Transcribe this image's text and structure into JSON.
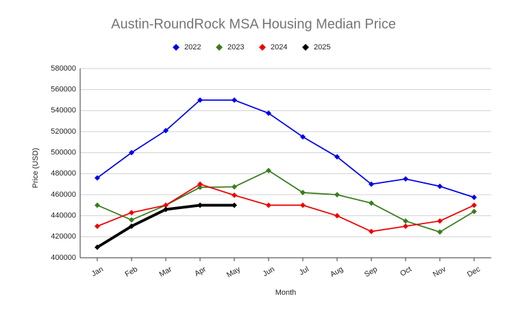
{
  "chart_data": {
    "type": "line",
    "title": "Austin-RoundRock MSA Housing Median Price",
    "x_label": "Month",
    "y_label": "Price (USD)",
    "categories": [
      "Jan",
      "Feb",
      "Mar",
      "Apr",
      "May",
      "Jun",
      "Jul",
      "Aug",
      "Sep",
      "Oct",
      "Nov",
      "Dec"
    ],
    "series": [
      {
        "name": "2022",
        "color": "#0000ee",
        "values": [
          476000,
          500000,
          521000,
          550000,
          550000,
          537500,
          515000,
          496000,
          470000,
          475000,
          468000,
          457500
        ]
      },
      {
        "name": "2023",
        "color": "#3a7d1e",
        "values": [
          450000,
          436000,
          450000,
          467000,
          467500,
          483000,
          462000,
          460000,
          452000,
          435000,
          424500,
          444000
        ]
      },
      {
        "name": "2024",
        "color": "#ee0000",
        "values": [
          430000,
          443000,
          450000,
          470000,
          459500,
          450000,
          450000,
          440000,
          425000,
          430000,
          435000,
          450000
        ]
      },
      {
        "name": "2025",
        "color": "#000000",
        "values": [
          410000,
          430000,
          446000,
          450000,
          450000,
          null,
          null,
          null,
          null,
          null,
          null,
          null
        ]
      }
    ],
    "ylim": [
      400000,
      580000
    ],
    "yticks": [
      400000,
      420000,
      440000,
      460000,
      480000,
      500000,
      520000,
      540000,
      560000,
      580000
    ],
    "grid": true,
    "legend": "top"
  }
}
